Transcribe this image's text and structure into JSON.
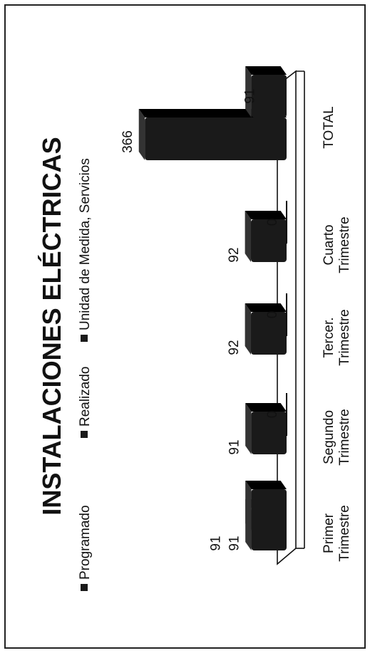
{
  "chart_data": {
    "type": "bar",
    "title": "INSTALACIONES ELÉCTRICAS",
    "categories": [
      "Primer\nTrimestre",
      "Segundo\nTrimestre",
      "Tercer.\nTrimestre",
      "Cuarto\nTrimestre",
      "TOTAL"
    ],
    "series": [
      {
        "name": "Programado",
        "values": [
          91,
          91,
          92,
          92,
          366
        ]
      },
      {
        "name": "Realizado",
        "values": [
          91,
          0,
          0,
          0,
          91
        ]
      },
      {
        "name": "Unidad de Medida, Servicios",
        "values": [
          null,
          null,
          null,
          null,
          null
        ]
      }
    ],
    "legend_position": "top",
    "grid": false,
    "ylim": [
      0,
      400
    ],
    "colors": {
      "bars": "#1a1a1a",
      "floor": "#ffffff",
      "text": "#111111"
    }
  }
}
